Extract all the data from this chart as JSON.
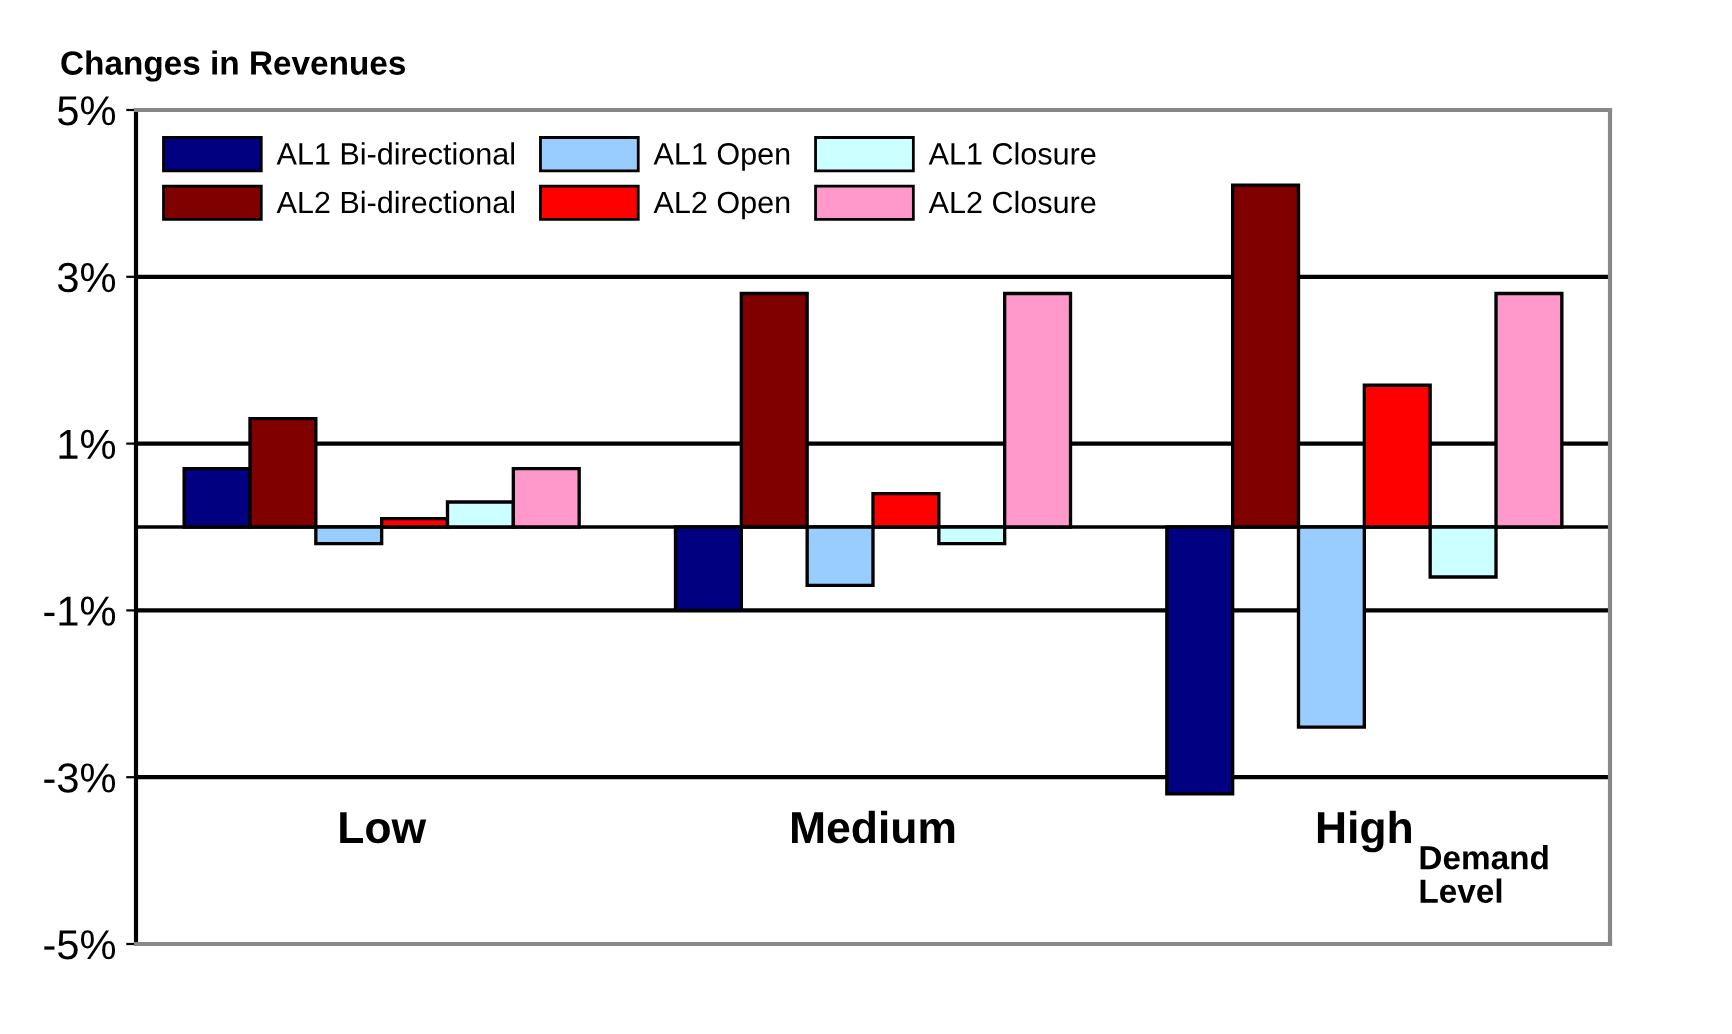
{
  "chart_data": {
    "type": "bar",
    "title": "Changes in Revenues",
    "xlabel": "Demand Level",
    "categories": [
      "Low",
      "Medium",
      "High"
    ],
    "series": [
      {
        "name": "AL1 Bi-directional",
        "color": "#000080",
        "values": [
          0.7,
          -1.0,
          -3.2
        ]
      },
      {
        "name": "AL2 Bi-directional",
        "color": "#800000",
        "values": [
          1.3,
          2.8,
          4.1
        ]
      },
      {
        "name": "AL1 Open",
        "color": "#99ccff",
        "values": [
          -0.2,
          -0.7,
          -2.4
        ]
      },
      {
        "name": "AL2 Open",
        "color": "#ff0000",
        "values": [
          0.1,
          0.4,
          1.7
        ]
      },
      {
        "name": "AL1 Closure",
        "color": "#ccffff",
        "values": [
          0.3,
          -0.2,
          -0.6
        ]
      },
      {
        "name": "AL2 Closure",
        "color": "#ff99cc",
        "values": [
          0.7,
          2.8,
          2.8
        ]
      }
    ],
    "ylim": [
      -5,
      5
    ],
    "yticks": [
      {
        "value": 5,
        "label": "5%"
      },
      {
        "value": 3,
        "label": "3%"
      },
      {
        "value": 1,
        "label": "1%"
      },
      {
        "value": -1,
        "label": "-1%"
      },
      {
        "value": -3,
        "label": "-3%"
      },
      {
        "value": -5,
        "label": "-5%"
      }
    ],
    "grid": "y",
    "legend": "top left"
  }
}
